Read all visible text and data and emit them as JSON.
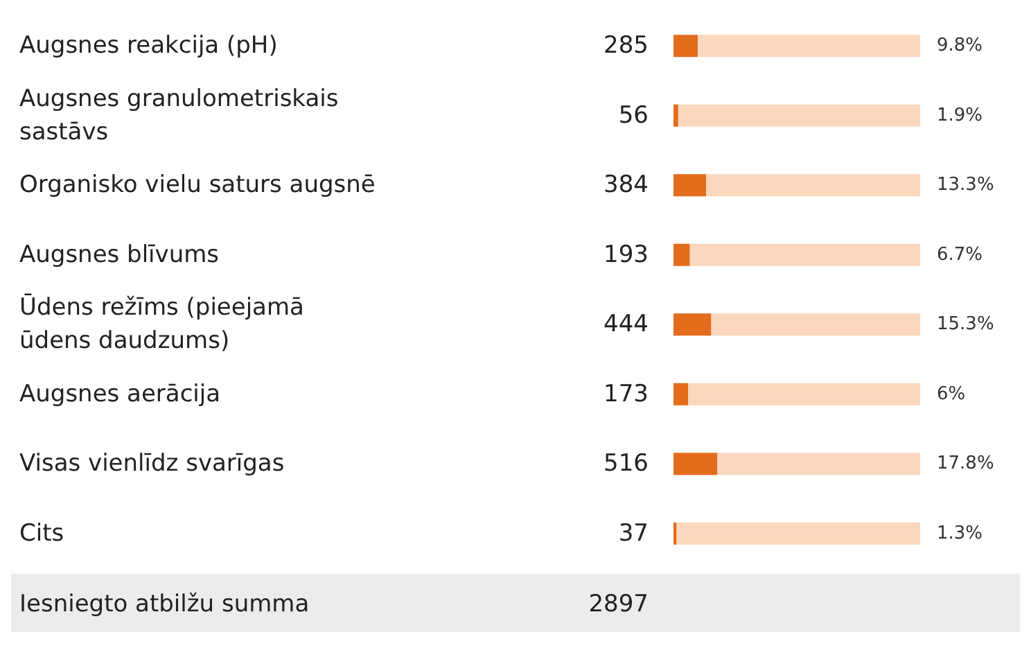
{
  "chart_data": {
    "type": "bar",
    "orientation": "horizontal",
    "stacked": true,
    "categories": [
      "Augsnes reakcija (pH)",
      "Augsnes granulometriskais sastāvs",
      "Organisko vielu saturs augsnē",
      "Augsnes blīvums",
      "Ūdens režīms (pieejamā ūdens daudzums)",
      "Augsnes aerācija",
      "Visas vienlīdz svarīgas",
      "Cits"
    ],
    "series": [
      {
        "color": "#e46c1d",
        "values": [
          285,
          56,
          384,
          193,
          444,
          173,
          516,
          37
        ],
        "value_labels": [
          "285",
          "56",
          "384",
          "193",
          "444",
          "173",
          "516",
          "37"
        ]
      },
      {
        "color": "#fad7bd",
        "values": [
          2612,
          2841,
          2513,
          2704,
          2453,
          2724,
          2381,
          2860
        ]
      }
    ],
    "xlim": [
      0,
      2897
    ],
    "annotations": [
      "9.8%",
      "1.9%",
      "13.3%",
      "6.7%",
      "15.3%",
      "6%",
      "17.8%",
      "1.3%",
      "Iesniegto atbilžu summa",
      "2897"
    ]
  }
}
